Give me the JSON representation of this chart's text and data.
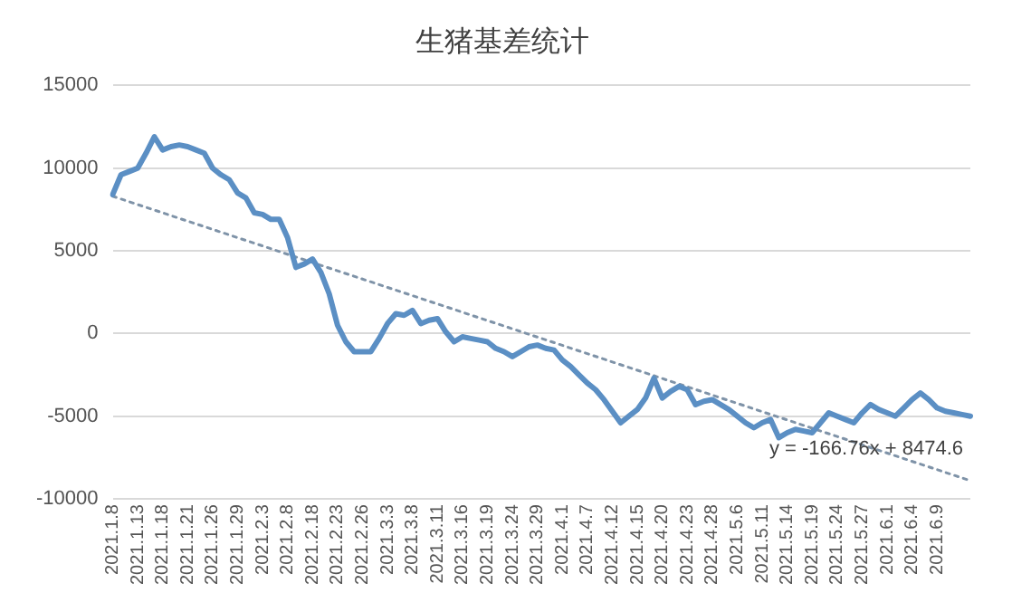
{
  "chart_data": {
    "type": "line",
    "title": "生猪基差统计",
    "categories": [
      "2021.1.8",
      null,
      null,
      "2021.1.13",
      null,
      null,
      "2021.1.18",
      null,
      null,
      "2021.1.21",
      null,
      null,
      "2021.1.26",
      null,
      null,
      "2021.1.29",
      null,
      null,
      "2021.2.3",
      null,
      null,
      "2021.2.8",
      null,
      null,
      "2021.2.18",
      null,
      null,
      "2021.2.23",
      null,
      null,
      "2021.2.26",
      null,
      null,
      "2021.3.3",
      null,
      null,
      "2021.3.8",
      null,
      null,
      "2021.3.11",
      null,
      null,
      "2021.3.16",
      null,
      null,
      "2021.3.19",
      null,
      null,
      "2021.3.24",
      null,
      null,
      "2021.3.29",
      null,
      null,
      "2021.4.1",
      null,
      null,
      "2021.4.7",
      null,
      null,
      "2021.4.12",
      null,
      null,
      "2021.4.15",
      null,
      null,
      "2021.4.20",
      null,
      null,
      "2021.4.23",
      null,
      null,
      "2021.4.28",
      null,
      null,
      "2021.5.6",
      null,
      null,
      "2021.5.11",
      null,
      null,
      "2021.5.14",
      null,
      null,
      "2021.5.19",
      null,
      null,
      "2021.5.24",
      null,
      null,
      "2021.5.27",
      null,
      null,
      "2021.6.1",
      null,
      null,
      "2021.6.4",
      null,
      null,
      "2021.6.9",
      null,
      null,
      null,
      null
    ],
    "series": [
      {
        "type": "line",
        "color": "#5b8fc4",
        "line_style": "solid",
        "values": [
          8400,
          9600,
          9800,
          10000,
          10900,
          11900,
          11100,
          11300,
          11400,
          11300,
          11100,
          10900,
          10000,
          9600,
          9300,
          8500,
          8200,
          7300,
          7200,
          6900,
          6900,
          5800,
          4000,
          4200,
          4500,
          3700,
          2400,
          500,
          -500,
          -1100,
          -1100,
          -1100,
          -300,
          600,
          1200,
          1100,
          1400,
          600,
          800,
          900,
          100,
          -500,
          -200,
          -300,
          -400,
          -500,
          -900,
          -1100,
          -1400,
          -1100,
          -800,
          -700,
          -900,
          -1000,
          -1600,
          -2000,
          -2500,
          -3000,
          -3400,
          -4000,
          -4700,
          -5400,
          -5000,
          -4600,
          -3900,
          -2700,
          -3900,
          -3500,
          -3200,
          -3400,
          -4300,
          -4100,
          -4000,
          -4300,
          -4600,
          -5000,
          -5400,
          -5700,
          -5400,
          -5200,
          -6300,
          -6000,
          -5800,
          -5900,
          -6000,
          -5400,
          -4800,
          -5000,
          -5200,
          -5400,
          -4800,
          -4300,
          -4600,
          -4800,
          -5000,
          -4500,
          -4000,
          -3600,
          -4000,
          -4500,
          -4700,
          -4800,
          -4900,
          -5000
        ]
      },
      {
        "type": "line",
        "color": "#7f93a8",
        "line_style": "dotted",
        "values": [
          8300,
          null,
          null,
          null,
          null,
          null,
          null,
          null,
          null,
          null,
          null,
          null,
          null,
          null,
          null,
          null,
          null,
          null,
          null,
          null,
          null,
          null,
          null,
          null,
          null,
          null,
          null,
          null,
          null,
          null,
          null,
          null,
          null,
          null,
          null,
          null,
          null,
          null,
          null,
          null,
          null,
          null,
          null,
          null,
          null,
          null,
          null,
          null,
          null,
          null,
          null,
          null,
          null,
          null,
          null,
          null,
          null,
          null,
          null,
          null,
          null,
          null,
          null,
          null,
          null,
          null,
          null,
          null,
          null,
          null,
          null,
          null,
          null,
          null,
          null,
          null,
          null,
          null,
          null,
          null,
          null,
          null,
          null,
          null,
          null,
          null,
          null,
          null,
          null,
          null,
          null,
          null,
          null,
          null,
          null,
          null,
          null,
          null,
          null,
          null,
          null,
          null,
          null,
          -8900
        ]
      }
    ],
    "annotations": [
      "y = -166.76x + 8474.6"
    ],
    "ylim": [
      -10000,
      15000
    ],
    "yticks": [
      -10000,
      -5000,
      0,
      5000,
      10000,
      15000
    ],
    "grid": "y",
    "legend": false,
    "marker": "none"
  }
}
